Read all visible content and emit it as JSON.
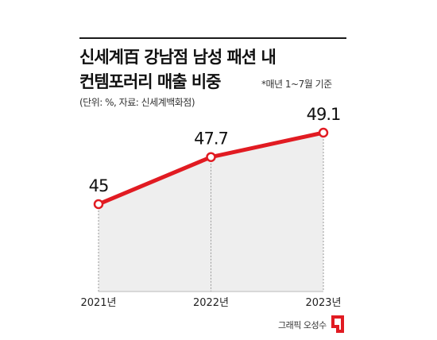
{
  "header": {
    "title_line1": "신세계百 강남점 남성 패션 내",
    "title_line2": "컨템포러리 매출 비중",
    "note": "*매년 1~7월 기준",
    "source": "(단위: %, 자료: 신세계백화점)"
  },
  "chart_data": {
    "type": "area",
    "title": "신세계百 강남점 남성 패션 내 컨템포러리 매출 비중",
    "categories": [
      "2021년",
      "2022년",
      "2023년"
    ],
    "values": [
      45,
      47.7,
      49.1
    ],
    "data_labels": [
      "45",
      "47.7",
      "49.1"
    ],
    "unit": "%",
    "ylim": [
      40,
      50
    ],
    "grid": false,
    "colors": {
      "line": "#e11b22",
      "marker_fill": "#ffffff",
      "area": "#eeeeee",
      "guide": "#999999"
    }
  },
  "footer": {
    "credit": "그래픽 오성수",
    "logo_color": "#e11b22"
  }
}
